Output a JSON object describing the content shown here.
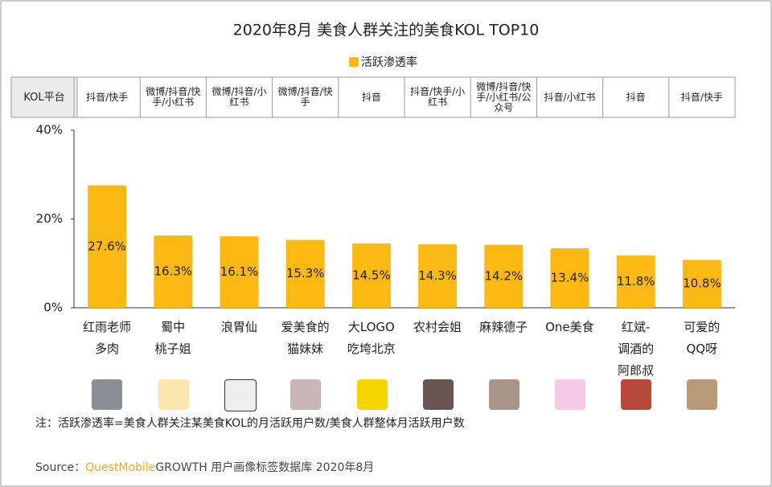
{
  "chart_data": {
    "type": "bar",
    "title": "2020年8月 美食人群关注的美食KOL TOP10",
    "categories": [
      "红雨老师\n多肉",
      "蜀中\n桃子姐",
      "浪胃仙",
      "爱美食的\n猫妹妹",
      "大LOGO\n吃垮北京",
      "农村会姐",
      "麻辣德子",
      "One美食",
      "红斌-\n调酒的\n阿郎叔",
      "可爱的\nQQ呀"
    ],
    "series": [
      {
        "name": "活跃渗透率",
        "color": "#FDB913",
        "values": [
          27.6,
          16.3,
          16.1,
          15.3,
          14.5,
          14.3,
          14.2,
          13.4,
          11.8,
          10.8
        ],
        "value_labels": [
          "27.6%",
          "16.3%",
          "16.1%",
          "15.3%",
          "14.5%",
          "14.3%",
          "14.2%",
          "13.4%",
          "11.8%",
          "10.8%"
        ]
      }
    ],
    "ylim": [
      0,
      40
    ],
    "yticks": [
      {
        "value": 0,
        "label": "0%"
      },
      {
        "value": 20,
        "label": "20%"
      },
      {
        "value": 40,
        "label": "40%"
      }
    ],
    "legend": "top"
  },
  "platform_table": {
    "header": "KOL平台",
    "cells": [
      "抖音/快手",
      "微博/抖音/快手/小红书",
      "微博/抖音/小红书",
      "微博/抖音/快手",
      "抖音",
      "抖音/快手/小红书",
      "微博/抖音/快手/小红书/公众号",
      "抖音/小红书",
      "抖音",
      "抖音/快手"
    ]
  },
  "note": "注：活跃渗透率=美食人群关注某美食KOL的月活跃用户数/美食人群整体月活跃用户数",
  "source": {
    "label": "Source：",
    "brand": "QuestMobile",
    "text": "GROWTH 用户画像标签数据库 2020年8月"
  }
}
